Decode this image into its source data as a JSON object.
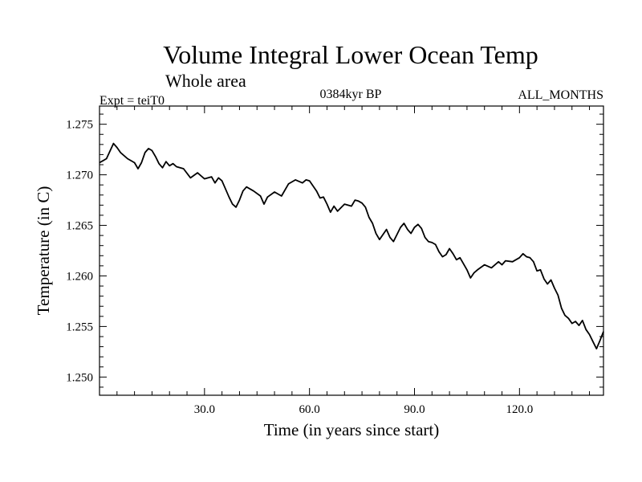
{
  "chart_data": {
    "type": "line",
    "title": "Volume Integral Lower Ocean Temp",
    "subtitle": "Whole area",
    "expt_label": "Expt = teiT0",
    "period_label": "0384kyr BP",
    "months_label": "ALL_MONTHS",
    "xlabel": "Time (in years since start)",
    "ylabel": "Temperature (in C)",
    "xlim": [
      0,
      144
    ],
    "ylim": [
      1.2482,
      1.2768
    ],
    "x_ticks": [
      {
        "value": 30,
        "label": "30.0"
      },
      {
        "value": 60,
        "label": "60.0"
      },
      {
        "value": 90,
        "label": "90.0"
      },
      {
        "value": 120,
        "label": "120.0"
      }
    ],
    "y_ticks": [
      {
        "value": 1.25,
        "label": "1.250"
      },
      {
        "value": 1.255,
        "label": "1.255"
      },
      {
        "value": 1.26,
        "label": "1.260"
      },
      {
        "value": 1.265,
        "label": "1.265"
      },
      {
        "value": 1.27,
        "label": "1.270"
      },
      {
        "value": 1.275,
        "label": "1.275"
      }
    ],
    "series": [
      {
        "name": "Temperature",
        "x": [
          0,
          2,
          4,
          5,
          6,
          8,
          10,
          11,
          12,
          13,
          14,
          15,
          16,
          17,
          18,
          19,
          20,
          21,
          22,
          24,
          26,
          28,
          30,
          32,
          33,
          34,
          35,
          36,
          37,
          38,
          39,
          40,
          41,
          42,
          44,
          46,
          47,
          48,
          50,
          52,
          54,
          56,
          58,
          59,
          60,
          62,
          63,
          64,
          65,
          66,
          67,
          68,
          70,
          72,
          73,
          74,
          75,
          76,
          77,
          78,
          79,
          80,
          81,
          82,
          83,
          84,
          85,
          86,
          87,
          88,
          89,
          90,
          91,
          92,
          93,
          94,
          95,
          96,
          97,
          98,
          99,
          100,
          101,
          102,
          103,
          104,
          105,
          106,
          107,
          108,
          110,
          112,
          114,
          115,
          116,
          118,
          120,
          121,
          122,
          123,
          124,
          125,
          126,
          127,
          128,
          129,
          130,
          131,
          132,
          133,
          134,
          135,
          136,
          137,
          138,
          139,
          140,
          141,
          142,
          143,
          144
        ],
        "values": [
          1.2712,
          1.2716,
          1.2731,
          1.2727,
          1.2722,
          1.2716,
          1.2712,
          1.2706,
          1.2712,
          1.2722,
          1.2726,
          1.2724,
          1.2718,
          1.2711,
          1.2707,
          1.2713,
          1.2709,
          1.2711,
          1.2708,
          1.2706,
          1.2697,
          1.2702,
          1.2696,
          1.2698,
          1.2692,
          1.2697,
          1.2694,
          1.2686,
          1.2678,
          1.2671,
          1.2668,
          1.2675,
          1.2684,
          1.2688,
          1.2684,
          1.2679,
          1.2671,
          1.2678,
          1.2683,
          1.2679,
          1.2691,
          1.2695,
          1.2692,
          1.2695,
          1.2694,
          1.2684,
          1.2677,
          1.2678,
          1.2671,
          1.2663,
          1.2669,
          1.2664,
          1.2671,
          1.2669,
          1.2675,
          1.2674,
          1.2672,
          1.2668,
          1.2658,
          1.2652,
          1.2642,
          1.2636,
          1.2641,
          1.2646,
          1.2638,
          1.2634,
          1.2641,
          1.2648,
          1.2652,
          1.2646,
          1.2642,
          1.2648,
          1.2651,
          1.2647,
          1.2638,
          1.2634,
          1.2633,
          1.2631,
          1.2624,
          1.2619,
          1.2621,
          1.2627,
          1.2622,
          1.2616,
          1.2618,
          1.2612,
          1.2606,
          1.2598,
          1.2603,
          1.2606,
          1.2611,
          1.2608,
          1.2614,
          1.2611,
          1.2615,
          1.2614,
          1.2618,
          1.2622,
          1.2619,
          1.2618,
          1.2614,
          1.2605,
          1.2606,
          1.2597,
          1.2592,
          1.2596,
          1.2588,
          1.2581,
          1.2568,
          1.2561,
          1.2558,
          1.2553,
          1.2555,
          1.2551,
          1.2556,
          1.2547,
          1.2542,
          1.2535,
          1.2528,
          1.2536,
          1.2545
        ]
      }
    ]
  }
}
